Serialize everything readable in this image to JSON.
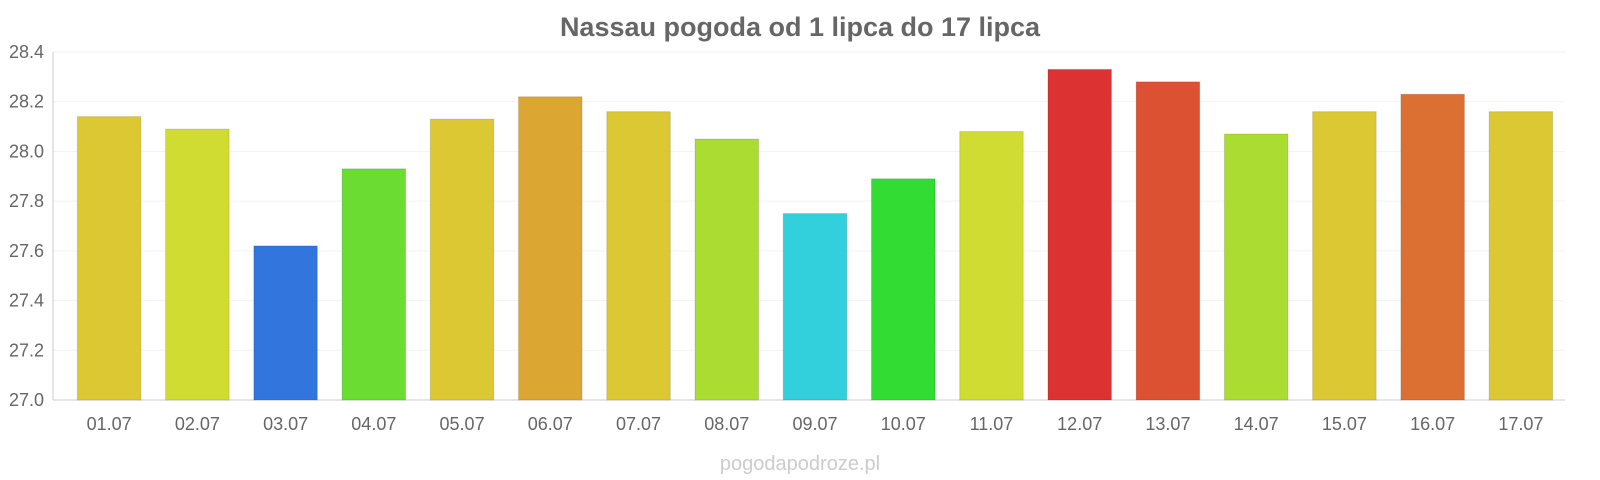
{
  "chart_data": {
    "type": "bar",
    "title": "Nassau pogoda od 1 lipca do 17 lipca",
    "xlabel": "",
    "ylabel": "",
    "categories": [
      "01.07",
      "02.07",
      "03.07",
      "04.07",
      "05.07",
      "06.07",
      "07.07",
      "08.07",
      "09.07",
      "10.07",
      "11.07",
      "12.07",
      "13.07",
      "14.07",
      "15.07",
      "16.07",
      "17.07"
    ],
    "values": [
      28.14,
      28.09,
      27.62,
      27.93,
      28.13,
      28.22,
      28.16,
      28.05,
      27.75,
      27.89,
      28.08,
      28.33,
      28.28,
      28.07,
      28.16,
      28.23,
      28.16
    ],
    "colors": [
      "#dbc832",
      "#d0dc32",
      "#3275dc",
      "#6adc32",
      "#dbc832",
      "#dca632",
      "#dbc832",
      "#aadc32",
      "#32cfdc",
      "#32dc32",
      "#d0dc32",
      "#dc3232",
      "#dc5132",
      "#aadc32",
      "#dbc832",
      "#dc6f32",
      "#dbc832"
    ],
    "ylim": [
      27.0,
      28.4
    ],
    "yticks": [
      "27.0",
      "27.2",
      "27.4",
      "27.6",
      "27.8",
      "28.0",
      "28.2",
      "28.4"
    ],
    "grid": true,
    "legend": "none"
  },
  "watermark": "pogodapodroze.pl"
}
